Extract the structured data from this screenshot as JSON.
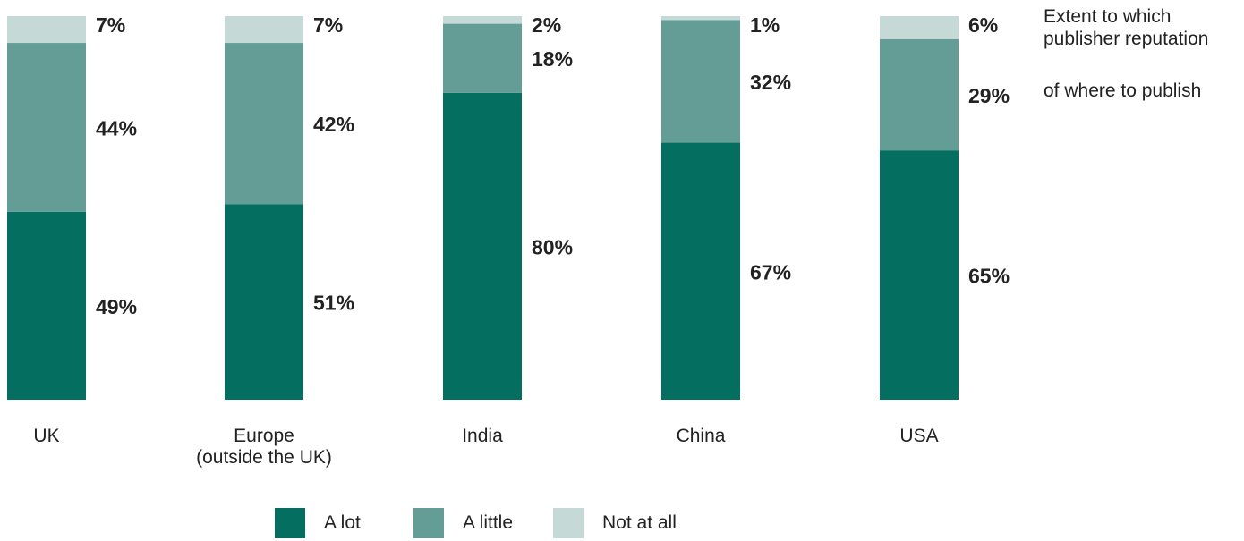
{
  "chart_data": {
    "type": "bar",
    "stacked": true,
    "categories": [
      "UK",
      "Europe\n(outside the UK)",
      "India",
      "China",
      "USA"
    ],
    "series": [
      {
        "name": "A lot",
        "values": [
          49,
          51,
          80,
          67,
          65
        ],
        "labels": [
          "49%",
          "51%",
          "80%",
          "67%",
          "65%"
        ],
        "color": "#046f61"
      },
      {
        "name": "A little",
        "values": [
          44,
          42,
          18,
          32,
          29
        ],
        "labels": [
          "44%",
          "42%",
          "18%",
          "32%",
          "29%"
        ],
        "color": "#649d96"
      },
      {
        "name": "Not at all",
        "values": [
          7,
          7,
          2,
          1,
          6
        ],
        "labels": [
          "7%",
          "7%",
          "2%",
          "1%",
          "6%"
        ],
        "color": "#c5d9d6"
      }
    ],
    "ylim": [
      0,
      100
    ],
    "grid": false,
    "legend_position": "bottom"
  },
  "side_note": {
    "line1": "Extent to which",
    "line2": "publisher reputation",
    "line3": "of where to publish"
  }
}
